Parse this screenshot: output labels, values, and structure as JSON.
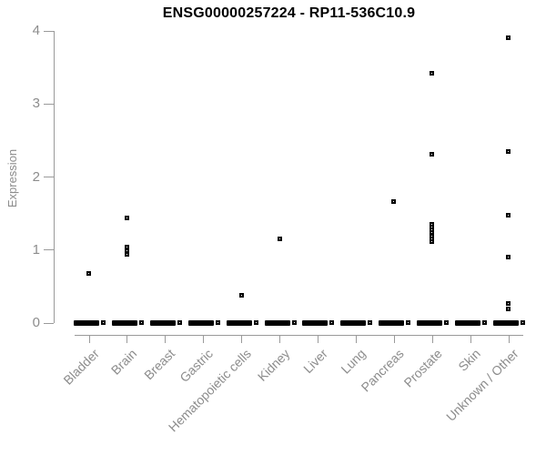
{
  "page": {
    "title": "ENSG00000257224 - RP11-536C10.9"
  },
  "colors": {
    "background": "#ffffff",
    "title_text": "#000000",
    "axis_line": "#9a9a9a",
    "axis_text": "#8c8c8c",
    "marker": "#000000"
  },
  "chart_data": {
    "type": "scatter",
    "subtype": "strip-plot",
    "title": "ENSG00000257224 - RP11-536C10.9",
    "xlabel": "",
    "ylabel": "Expression",
    "ylim": [
      0,
      4
    ],
    "yticks": [
      0,
      1,
      2,
      3,
      4
    ],
    "grid": false,
    "legend": false,
    "marker_style": "small open black square",
    "categories": [
      "Bladder",
      "Brain",
      "Breast",
      "Gastric",
      "Hematopoietic cells",
      "Kidney",
      "Liver",
      "Lung",
      "Pancreas",
      "Prostate",
      "Skin",
      "Unknown / Other"
    ],
    "series": [
      {
        "category": "Bladder",
        "zero_cluster": true,
        "nonzero_values": [
          0.67
        ]
      },
      {
        "category": "Brain",
        "zero_cluster": true,
        "nonzero_values": [
          1.43,
          1.03,
          0.98,
          0.93
        ]
      },
      {
        "category": "Breast",
        "zero_cluster": true,
        "nonzero_values": []
      },
      {
        "category": "Gastric",
        "zero_cluster": true,
        "nonzero_values": []
      },
      {
        "category": "Hematopoietic cells",
        "zero_cluster": true,
        "nonzero_values": [
          0.37
        ]
      },
      {
        "category": "Kidney",
        "zero_cluster": true,
        "nonzero_values": [
          1.15
        ]
      },
      {
        "category": "Liver",
        "zero_cluster": true,
        "nonzero_values": []
      },
      {
        "category": "Lung",
        "zero_cluster": true,
        "nonzero_values": []
      },
      {
        "category": "Pancreas",
        "zero_cluster": true,
        "nonzero_values": [
          1.66
        ]
      },
      {
        "category": "Prostate",
        "zero_cluster": true,
        "nonzero_values": [
          3.41,
          2.31,
          1.35,
          1.31,
          1.27,
          1.23,
          1.19,
          1.15,
          1.11
        ]
      },
      {
        "category": "Skin",
        "zero_cluster": true,
        "nonzero_values": []
      },
      {
        "category": "Unknown / Other",
        "zero_cluster": true,
        "nonzero_values": [
          3.9,
          2.34,
          1.47,
          0.9,
          0.26,
          0.19
        ]
      }
    ],
    "note": "Every category shows a dense horizontal cluster of many overlapping points at expression 0, appearing as a thick black bar just above the x axis."
  }
}
